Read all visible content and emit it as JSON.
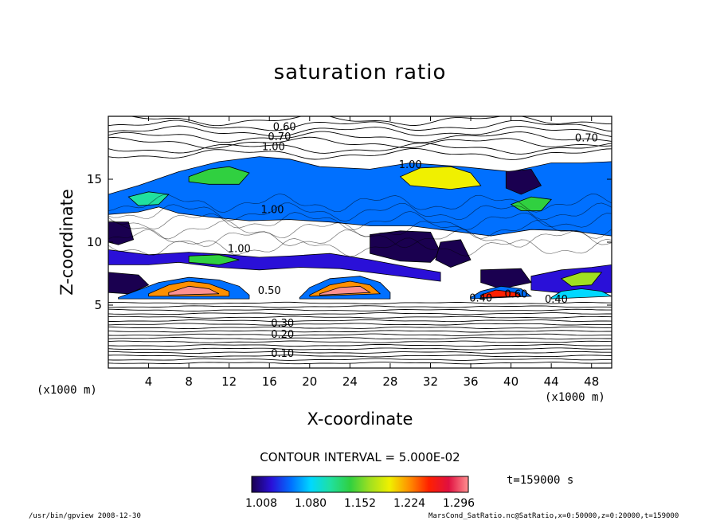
{
  "chart_data": {
    "type": "heatmap",
    "title": "saturation ratio",
    "xlabel": "X-coordinate",
    "ylabel": "Z-coordinate",
    "x_unit_label": "(x1000 m)",
    "xlim": [
      0,
      50
    ],
    "ylim": [
      0,
      20
    ],
    "x_ticks": [
      4,
      8,
      12,
      16,
      20,
      24,
      28,
      32,
      36,
      40,
      44,
      48
    ],
    "y_ticks": [
      5,
      10,
      15
    ],
    "contour_interval": "CONTOUR INTERVAL = 5.000E-02",
    "colorbar": {
      "ticks": [
        "1.008",
        "1.080",
        "1.152",
        "1.224",
        "1.296"
      ],
      "range": [
        1.0,
        1.3
      ],
      "colors": [
        "#1a0050",
        "#2a10d8",
        "#0070ff",
        "#00d8ff",
        "#20e0a0",
        "#30d040",
        "#a0e020",
        "#f0f000",
        "#ff9000",
        "#ff2000",
        "#e01040",
        "#ff9090"
      ]
    },
    "contour_labels": [
      {
        "text": "0.60",
        "x": 17.5,
        "y": 18.9
      },
      {
        "text": "0.70",
        "x": 17.0,
        "y": 18.1
      },
      {
        "text": "1.00",
        "x": 16.4,
        "y": 17.3
      },
      {
        "text": "0.60",
        "x": 45.8,
        "y": 20.0
      },
      {
        "text": "0.70",
        "x": 47.5,
        "y": 18.0
      },
      {
        "text": "1.00",
        "x": 30.0,
        "y": 15.9
      },
      {
        "text": "1.00",
        "x": 16.3,
        "y": 12.3
      },
      {
        "text": "1.00",
        "x": 13.0,
        "y": 9.2
      },
      {
        "text": "0.50",
        "x": 16.0,
        "y": 5.9
      },
      {
        "text": "0.10",
        "x": 17.3,
        "y": 0.9
      },
      {
        "text": "0.20",
        "x": 17.3,
        "y": 2.4
      },
      {
        "text": "0.30",
        "x": 17.3,
        "y": 3.3
      },
      {
        "text": "0.40",
        "x": 37.0,
        "y": 5.3
      },
      {
        "text": "0.60",
        "x": 40.5,
        "y": 5.6
      },
      {
        "text": "0.40",
        "x": 44.5,
        "y": 5.2
      }
    ],
    "regions": [
      {
        "name": "upper-layer",
        "value": 1.05,
        "points": [
          [
            0,
            13.8
          ],
          [
            3,
            14.5
          ],
          [
            7,
            15.6
          ],
          [
            11,
            16.4
          ],
          [
            15,
            16.8
          ],
          [
            18,
            16.6
          ],
          [
            21,
            16.0
          ],
          [
            26,
            15.8
          ],
          [
            30,
            16.3
          ],
          [
            35,
            16.0
          ],
          [
            40,
            15.6
          ],
          [
            44,
            16.3
          ],
          [
            47,
            16.3
          ],
          [
            50,
            16.4
          ],
          [
            50,
            10.5
          ],
          [
            46,
            10.9
          ],
          [
            42,
            11.0
          ],
          [
            38,
            10.5
          ],
          [
            34,
            10.9
          ],
          [
            30,
            11.3
          ],
          [
            26,
            11.3
          ],
          [
            22,
            11.6
          ],
          [
            18,
            11.8
          ],
          [
            14,
            11.7
          ],
          [
            10,
            12.0
          ],
          [
            7,
            12.3
          ],
          [
            5,
            12.8
          ],
          [
            3,
            12.4
          ],
          [
            0,
            12.2
          ]
        ]
      },
      {
        "name": "upper-core-1",
        "value": 1.15,
        "points": [
          [
            8,
            15.2
          ],
          [
            10,
            15.8
          ],
          [
            12,
            16.0
          ],
          [
            14,
            15.5
          ],
          [
            13,
            14.6
          ],
          [
            10,
            14.6
          ],
          [
            8,
            14.8
          ]
        ]
      },
      {
        "name": "upper-core-2",
        "value": 1.2,
        "points": [
          [
            29,
            15.2
          ],
          [
            31,
            15.9
          ],
          [
            34,
            16.0
          ],
          [
            36,
            15.5
          ],
          [
            37,
            14.5
          ],
          [
            34,
            14.2
          ],
          [
            30,
            14.5
          ]
        ]
      },
      {
        "name": "upper-core-3",
        "value": 1.12,
        "points": [
          [
            2,
            13.6
          ],
          [
            4,
            14.0
          ],
          [
            6,
            13.8
          ],
          [
            5,
            13.0
          ],
          [
            3,
            12.9
          ]
        ]
      },
      {
        "name": "upper-core-4",
        "value": 1.14,
        "points": [
          [
            40,
            13.0
          ],
          [
            42,
            13.6
          ],
          [
            44,
            13.4
          ],
          [
            43,
            12.5
          ],
          [
            41,
            12.5
          ]
        ]
      },
      {
        "name": "mid-band",
        "value": 1.04,
        "points": [
          [
            0,
            9.4
          ],
          [
            4,
            9.0
          ],
          [
            8,
            9.2
          ],
          [
            12,
            9.0
          ],
          [
            15,
            8.8
          ],
          [
            18,
            8.9
          ],
          [
            22,
            9.1
          ],
          [
            26,
            8.6
          ],
          [
            30,
            8.0
          ],
          [
            33,
            7.6
          ],
          [
            33,
            6.9
          ],
          [
            28,
            7.4
          ],
          [
            23,
            7.9
          ],
          [
            19,
            8.0
          ],
          [
            15,
            7.8
          ],
          [
            11,
            8.0
          ],
          [
            7,
            8.4
          ],
          [
            4,
            8.2
          ],
          [
            0,
            8.2
          ]
        ]
      },
      {
        "name": "mid-band-core",
        "value": 1.13,
        "points": [
          [
            8,
            8.9
          ],
          [
            11,
            9.0
          ],
          [
            13,
            8.6
          ],
          [
            11,
            8.2
          ],
          [
            8,
            8.4
          ]
        ]
      },
      {
        "name": "mid-band-right",
        "value": 1.03,
        "points": [
          [
            42,
            7.3
          ],
          [
            45,
            7.8
          ],
          [
            48,
            8.0
          ],
          [
            50,
            8.2
          ],
          [
            50,
            6.0
          ],
          [
            46,
            5.9
          ],
          [
            42,
            6.2
          ]
        ]
      },
      {
        "name": "mid-band-right-core",
        "value": 1.16,
        "points": [
          [
            45,
            7.1
          ],
          [
            47,
            7.6
          ],
          [
            49,
            7.6
          ],
          [
            48,
            6.6
          ],
          [
            46,
            6.5
          ]
        ]
      },
      {
        "name": "mid-purple-1",
        "value": 1.01,
        "points": [
          [
            26,
            10.6
          ],
          [
            29,
            10.9
          ],
          [
            32,
            10.8
          ],
          [
            33,
            9.2
          ],
          [
            32,
            8.4
          ],
          [
            29,
            8.5
          ],
          [
            26,
            9.1
          ]
        ]
      },
      {
        "name": "mid-purple-2",
        "value": 1.01,
        "points": [
          [
            33,
            10.0
          ],
          [
            35,
            10.2
          ],
          [
            36,
            8.6
          ],
          [
            34,
            8.0
          ],
          [
            32.5,
            8.6
          ]
        ]
      },
      {
        "name": "mid-purple-3",
        "value": 1.01,
        "points": [
          [
            0,
            7.6
          ],
          [
            3,
            7.4
          ],
          [
            4,
            6.6
          ],
          [
            2,
            5.9
          ],
          [
            0,
            6.0
          ]
        ]
      },
      {
        "name": "mid-purple-4",
        "value": 1.01,
        "points": [
          [
            37,
            7.8
          ],
          [
            41,
            7.9
          ],
          [
            42,
            6.8
          ],
          [
            39,
            6.3
          ],
          [
            37,
            6.8
          ]
        ]
      },
      {
        "name": "mid-purple-5",
        "value": 1.01,
        "points": [
          [
            0,
            11.6
          ],
          [
            2,
            11.6
          ],
          [
            2.5,
            10.2
          ],
          [
            1,
            9.8
          ],
          [
            0,
            10.0
          ]
        ]
      },
      {
        "name": "mid-purple-6",
        "value": 1.01,
        "points": [
          [
            39.5,
            15.6
          ],
          [
            42,
            15.8
          ],
          [
            43,
            14.5
          ],
          [
            41,
            13.8
          ],
          [
            39.5,
            14.3
          ]
        ]
      },
      {
        "name": "lower-dome-1",
        "value": 1.06,
        "points": [
          [
            1,
            5.6
          ],
          [
            3,
            6.2
          ],
          [
            5,
            6.8
          ],
          [
            8,
            7.2
          ],
          [
            11,
            7.0
          ],
          [
            13,
            6.5
          ],
          [
            14,
            5.8
          ],
          [
            14,
            5.5
          ],
          [
            1,
            5.5
          ]
        ]
      },
      {
        "name": "lower-dome-1-core",
        "value": 1.22,
        "points": [
          [
            4,
            5.9
          ],
          [
            6,
            6.6
          ],
          [
            8,
            6.9
          ],
          [
            10,
            6.7
          ],
          [
            12,
            6.1
          ],
          [
            12,
            5.7
          ],
          [
            4,
            5.7
          ]
        ]
      },
      {
        "name": "lower-dome-1-peak",
        "value": 1.28,
        "points": [
          [
            6,
            6.0
          ],
          [
            8,
            6.5
          ],
          [
            10,
            6.3
          ],
          [
            11,
            5.9
          ],
          [
            6,
            5.8
          ]
        ]
      },
      {
        "name": "lower-dome-2",
        "value": 1.06,
        "points": [
          [
            19,
            5.6
          ],
          [
            20,
            6.4
          ],
          [
            22,
            7.1
          ],
          [
            25,
            7.3
          ],
          [
            27,
            6.8
          ],
          [
            28,
            6.0
          ],
          [
            28,
            5.5
          ],
          [
            19,
            5.5
          ]
        ]
      },
      {
        "name": "lower-dome-2-core",
        "value": 1.22,
        "points": [
          [
            20,
            5.8
          ],
          [
            22,
            6.6
          ],
          [
            24,
            6.9
          ],
          [
            26,
            6.6
          ],
          [
            27,
            5.9
          ],
          [
            20,
            5.7
          ]
        ]
      },
      {
        "name": "lower-dome-2-peak",
        "value": 1.28,
        "points": [
          [
            21,
            5.9
          ],
          [
            23,
            6.4
          ],
          [
            25,
            6.5
          ],
          [
            26,
            6.0
          ],
          [
            21,
            5.8
          ]
        ]
      },
      {
        "name": "lower-dome-3",
        "value": 1.06,
        "points": [
          [
            36,
            5.6
          ],
          [
            37,
            6.1
          ],
          [
            39,
            6.5
          ],
          [
            41,
            6.3
          ],
          [
            42,
            5.7
          ],
          [
            36,
            5.5
          ]
        ]
      },
      {
        "name": "lower-dome-3-core",
        "value": 1.24,
        "points": [
          [
            37,
            5.8
          ],
          [
            38.5,
            6.2
          ],
          [
            40.5,
            6.0
          ],
          [
            41,
            5.7
          ],
          [
            37,
            5.6
          ]
        ]
      },
      {
        "name": "lower-dome-4",
        "value": 1.08,
        "points": [
          [
            44,
            5.6
          ],
          [
            45,
            6.1
          ],
          [
            47,
            6.3
          ],
          [
            49,
            6.1
          ],
          [
            50,
            5.7
          ],
          [
            44,
            5.5
          ]
        ]
      }
    ]
  },
  "annotations": {
    "time": "t=159000 s",
    "footer_left": "/usr/bin/gpview   2008-12-30",
    "footer_right": "MarsCond_SatRatio.nc@SatRatio,x=0:50000,z=0:20000,t=159000"
  }
}
